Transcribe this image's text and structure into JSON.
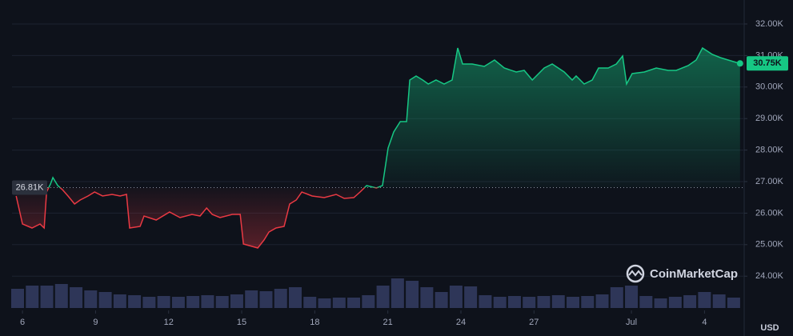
{
  "chart_data": {
    "type": "line",
    "x": [
      5.74,
      6.0,
      6.39,
      6.72,
      6.89,
      6.99,
      7.15,
      7.25,
      7.45,
      7.64,
      7.87,
      8.14,
      8.37,
      8.69,
      8.96,
      9.29,
      9.68,
      10.01,
      10.27,
      10.4,
      10.83,
      10.99,
      11.49,
      12.04,
      12.47,
      12.96,
      13.29,
      13.56,
      13.79,
      14.11,
      14.61,
      14.94,
      15.07,
      15.43,
      15.66,
      15.92,
      16.12,
      16.41,
      16.74,
      16.97,
      17.24,
      17.47,
      17.89,
      18.39,
      18.88,
      19.21,
      19.6,
      19.86,
      20.13,
      20.53,
      20.78,
      21.01,
      21.24,
      21.51,
      21.77,
      21.9,
      22.16,
      22.43,
      22.66,
      22.98,
      23.31,
      23.64,
      23.87,
      24.07,
      24.46,
      24.96,
      25.38,
      25.78,
      26.27,
      26.6,
      26.93,
      27.42,
      27.75,
      28.24,
      28.57,
      28.73,
      29.06,
      29.39,
      29.65,
      30.05,
      30.38,
      30.64,
      30.8,
      31.03,
      31.53,
      32.02,
      32.51,
      32.84,
      33.33,
      33.66,
      33.92,
      34.32,
      34.65,
      34.97,
      35.3,
      35.46
    ],
    "values": [
      26543,
      25655,
      25528,
      25655,
      25528,
      26670,
      26924,
      27127,
      26873,
      26746,
      26543,
      26289,
      26416,
      26543,
      26670,
      26543,
      26594,
      26543,
      26594,
      25528,
      25579,
      25909,
      25782,
      26036,
      25858,
      25960,
      25909,
      26163,
      25960,
      25858,
      25960,
      25960,
      25020,
      24944,
      24894,
      25147,
      25401,
      25528,
      25579,
      26289,
      26416,
      26670,
      26543,
      26493,
      26594,
      26467,
      26493,
      26670,
      26873,
      26797,
      26873,
      28066,
      28574,
      28904,
      28904,
      30223,
      30350,
      30223,
      30096,
      30223,
      30096,
      30223,
      31239,
      30731,
      30731,
      30655,
      30858,
      30604,
      30477,
      30528,
      30223,
      30604,
      30731,
      30477,
      30223,
      30350,
      30096,
      30223,
      30604,
      30604,
      30731,
      30985,
      30096,
      30426,
      30477,
      30604,
      30528,
      30528,
      30680,
      30858,
      31239,
      31036,
      30934,
      30858,
      30782,
      30750
    ],
    "xlim": [
      5.57,
      35.63
    ],
    "ylim": [
      23041,
      32761
    ],
    "xticks": [
      6,
      9,
      12,
      15,
      18,
      21,
      24,
      27,
      {
        "value": 31,
        "label": "Jul"
      },
      4.0001
    ],
    "yticks": [
      {
        "value": 24000,
        "label": "24.00K"
      },
      {
        "value": 25000,
        "label": "25.00K"
      },
      {
        "value": 26000,
        "label": "26.00K"
      },
      {
        "value": 27000,
        "label": "27.00K"
      },
      {
        "value": 28000,
        "label": "28.00K"
      },
      {
        "value": 29000,
        "label": "29.00K"
      },
      {
        "value": 30000,
        "label": "30.00K"
      },
      {
        "value": 31000,
        "label": "31.00K"
      },
      {
        "value": 32000,
        "label": "32.00K"
      }
    ],
    "grid": true,
    "colors": {
      "up": "#16c784",
      "down": "#ea3943"
    },
    "baseline": {
      "value": 26810,
      "label": "26.81K"
    },
    "last": {
      "value": 30750,
      "label": "30.75K"
    },
    "volume": {
      "x": [
        5.8,
        6.4,
        7.0,
        7.6,
        8.2,
        8.8,
        9.4,
        10.0,
        10.6,
        11.2,
        11.8,
        12.4,
        13.0,
        13.6,
        14.2,
        14.8,
        15.4,
        16.0,
        16.6,
        17.2,
        17.8,
        18.4,
        19.0,
        19.6,
        20.2,
        20.8,
        21.4,
        22.0,
        22.6,
        23.2,
        23.8,
        24.4,
        25.0,
        25.6,
        26.2,
        26.8,
        27.4,
        28.0,
        28.6,
        29.2,
        29.8,
        30.4,
        31.0,
        31.6,
        32.2,
        32.8,
        33.4,
        34.0,
        34.6,
        35.2
      ],
      "values": [
        24,
        28,
        28,
        30,
        26,
        22,
        20,
        17,
        16,
        14,
        15,
        14,
        15,
        16,
        15,
        17,
        22,
        21,
        24,
        26,
        14,
        12,
        13,
        13,
        16,
        28,
        37,
        34,
        26,
        20,
        28,
        27,
        16,
        14,
        15,
        14,
        15,
        16,
        14,
        15,
        17,
        26,
        28,
        15,
        12,
        14,
        16,
        20,
        17,
        13
      ],
      "vlim": [
        0,
        45
      ],
      "color": "#2e3658"
    },
    "currency": "USD",
    "watermark": "CoinMarketCap"
  }
}
